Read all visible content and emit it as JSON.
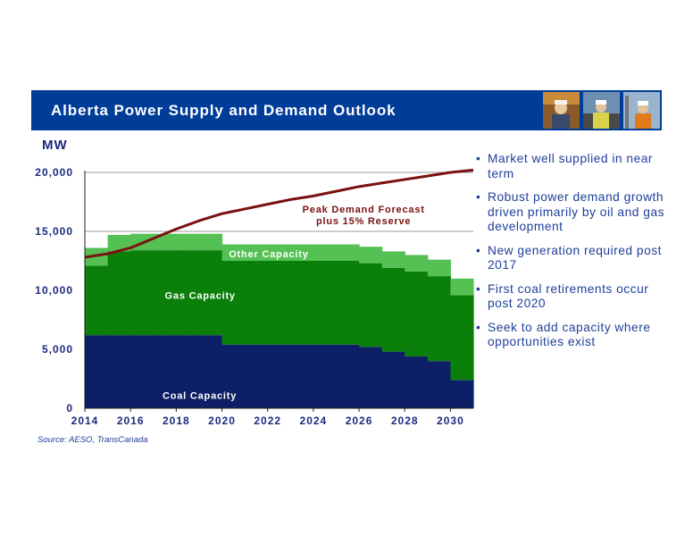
{
  "header": {
    "title": "Alberta Power Supply and Demand Outlook",
    "background": "#003d99",
    "photos": [
      "worker-photo-icon",
      "worker-photo-icon",
      "worker-photo-icon"
    ]
  },
  "chart_data": {
    "type": "area",
    "ylabel": "MW",
    "ylim": [
      0,
      20000
    ],
    "xlim": [
      2014,
      2031
    ],
    "x_ticks": [
      "2014",
      "2016",
      "2018",
      "2020",
      "2022",
      "2024",
      "2026",
      "2028",
      "2030"
    ],
    "y_ticks": [
      {
        "value": 0,
        "label": "0"
      },
      {
        "value": 5000,
        "label": "5,000"
      },
      {
        "value": 10000,
        "label": "10,000"
      },
      {
        "value": 15000,
        "label": "15,000"
      },
      {
        "value": 20000,
        "label": "20,000"
      }
    ],
    "grid": "horizontal",
    "stacked": true,
    "step": true,
    "years": [
      2014,
      2015,
      2016,
      2017,
      2018,
      2019,
      2020,
      2021,
      2022,
      2023,
      2024,
      2025,
      2026,
      2027,
      2028,
      2029,
      2030
    ],
    "series": [
      {
        "name": "Coal Capacity",
        "color": "#0d1f66",
        "values": [
          6200,
          6200,
          6200,
          6200,
          6200,
          6200,
          5400,
          5400,
          5400,
          5400,
          5400,
          5400,
          5200,
          4800,
          4400,
          4000,
          2400
        ]
      },
      {
        "name": "Gas Capacity",
        "color": "#0a7f0a",
        "values": [
          5900,
          7100,
          7200,
          7200,
          7200,
          7200,
          7100,
          7100,
          7100,
          7100,
          7100,
          7100,
          7100,
          7100,
          7200,
          7200,
          7200
        ]
      },
      {
        "name": "Other Capacity",
        "color": "#55c155",
        "values": [
          1500,
          1400,
          1400,
          1400,
          1400,
          1400,
          1400,
          1400,
          1400,
          1400,
          1400,
          1400,
          1400,
          1400,
          1400,
          1400,
          1400
        ]
      }
    ],
    "line": {
      "name": "Peak Demand Forecast plus 15% Reserve",
      "label_lines": [
        "Peak Demand Forecast",
        "plus 15%  Reserve"
      ],
      "color": "#7b1010",
      "x": [
        2014,
        2015,
        2016,
        2017,
        2018,
        2019,
        2020,
        2021,
        2022,
        2023,
        2024,
        2025,
        2026,
        2027,
        2028,
        2029,
        2030,
        2031
      ],
      "values": [
        12800,
        13100,
        13600,
        14400,
        15200,
        15900,
        16500,
        16900,
        17300,
        17700,
        18000,
        18400,
        18800,
        19100,
        19400,
        19700,
        20000,
        20200
      ]
    },
    "source": "Source: AESO, TransCanada"
  },
  "bullets": [
    "Market well supplied in near term",
    "Robust power demand growth driven primarily by oil and gas development",
    "New generation required post 2017",
    "First coal retirements occur post 2020",
    "Seek to add capacity where opportunities exist"
  ]
}
